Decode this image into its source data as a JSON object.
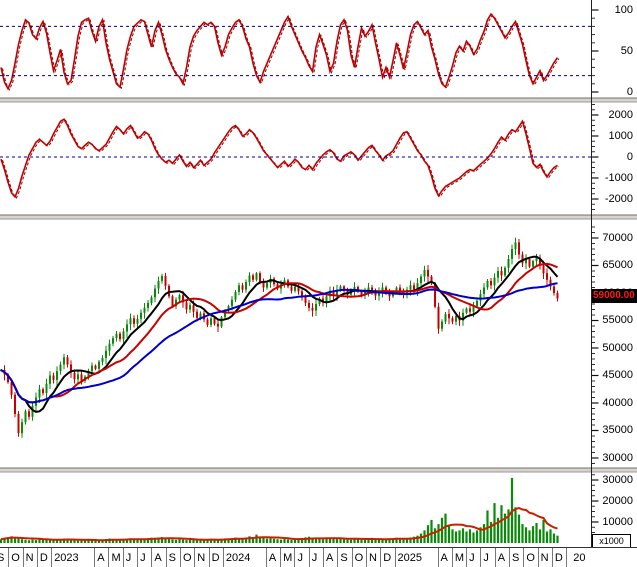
{
  "app": {
    "name": "Technical analysis chart",
    "panels": 4
  },
  "axis": {
    "price_badge": "59000.00",
    "volume_unit": "x1000"
  },
  "timeline": {
    "labels": [
      "S",
      "O",
      "N",
      "D",
      "2023",
      "A",
      "M",
      "J",
      "J",
      "A",
      "S",
      "O",
      "N",
      "D",
      "2024",
      "A",
      "M",
      "J",
      "J",
      "A",
      "S",
      "O",
      "N",
      "D",
      "2025",
      "A",
      "M",
      "J",
      "J",
      "A",
      "S",
      "O",
      "N",
      "D",
      "20"
    ]
  },
  "colors": {
    "oscillator": "#c00000",
    "oscillator_signal": "#8c0000",
    "dashed_level": "#000090",
    "candle_up": "#0a8a0a",
    "candle_down": "#c80000",
    "ma_fast": "#000000",
    "ma_mid": "#c80000",
    "ma_slow": "#0000c8",
    "volume_bar": "#0a8a0a",
    "volume_ma": "#c82000",
    "badge_bg": "#000000",
    "badge_text": "#ff1a1a"
  },
  "chart_data": [
    {
      "type": "line",
      "name": "stochastic_oscillator",
      "ylim": [
        0,
        100
      ],
      "yticks": [
        100,
        50,
        0
      ],
      "dashed_levels": [
        80,
        20
      ],
      "legend_position": "none",
      "grid": false,
      "values": [
        30,
        12,
        4,
        14,
        35,
        58,
        75,
        88,
        84,
        70,
        65,
        78,
        86,
        72,
        48,
        26,
        38,
        52,
        24,
        10,
        14,
        40,
        68,
        85,
        88,
        90,
        74,
        62,
        80,
        88,
        60,
        40,
        25,
        10,
        6,
        28,
        52,
        68,
        80,
        84,
        88,
        86,
        70,
        55,
        75,
        85,
        70,
        52,
        40,
        30,
        22,
        18,
        10,
        30,
        55,
        68,
        75,
        80,
        85,
        82,
        85,
        80,
        60,
        45,
        55,
        70,
        78,
        85,
        88,
        80,
        65,
        55,
        35,
        20,
        12,
        25,
        35,
        45,
        55,
        65,
        75,
        85,
        92,
        80,
        70,
        60,
        50,
        42,
        32,
        25,
        55,
        70,
        58,
        45,
        25,
        35,
        62,
        82,
        88,
        75,
        45,
        30,
        55,
        78,
        68,
        74,
        82,
        60,
        40,
        18,
        30,
        18,
        38,
        60,
        45,
        28,
        48,
        70,
        82,
        86,
        78,
        70,
        75,
        55,
        40,
        22,
        10,
        6,
        18,
        32,
        48,
        56,
        50,
        62,
        56,
        46,
        52,
        64,
        74,
        88,
        95,
        90,
        82,
        74,
        66,
        72,
        80,
        86,
        72,
        58,
        38,
        20,
        10,
        18,
        26,
        14,
        20,
        28,
        36,
        42
      ]
    },
    {
      "type": "line",
      "name": "momentum_oscillator",
      "ylim": [
        -2500,
        2500
      ],
      "yticks": [
        2000,
        1000,
        0,
        -1000,
        -2000
      ],
      "dashed_levels": [
        0
      ],
      "grid": false,
      "values": [
        -100,
        -600,
        -1200,
        -1700,
        -1900,
        -1500,
        -900,
        -400,
        100,
        400,
        700,
        850,
        700,
        550,
        750,
        1100,
        1400,
        1700,
        1800,
        1500,
        1100,
        800,
        500,
        400,
        550,
        700,
        600,
        400,
        300,
        450,
        600,
        900,
        1200,
        1450,
        1300,
        1100,
        1350,
        1500,
        1200,
        900,
        1000,
        1200,
        1100,
        800,
        400,
        100,
        -100,
        -250,
        -150,
        -300,
        -100,
        100,
        -200,
        -450,
        -250,
        -500,
        -350,
        -150,
        -400,
        -250,
        -100,
        200,
        450,
        700,
        950,
        1200,
        1400,
        1500,
        1300,
        1000,
        1100,
        1300,
        1150,
        900,
        600,
        300,
        100,
        -100,
        -300,
        -500,
        -350,
        -200,
        -450,
        -300,
        -100,
        -250,
        -500,
        -600,
        -400,
        -600,
        -300,
        -100,
        100,
        250,
        350,
        200,
        -100,
        -200,
        50,
        150,
        250,
        100,
        -150,
        50,
        250,
        450,
        550,
        300,
        100,
        -150,
        50,
        150,
        300,
        600,
        900,
        1150,
        1200,
        900,
        600,
        300,
        100,
        -200,
        -400,
        -900,
        -1500,
        -1850,
        -1600,
        -1400,
        -1300,
        -1200,
        -1100,
        -1000,
        -850,
        -700,
        -600,
        -650,
        -500,
        -350,
        -200,
        -50,
        150,
        400,
        700,
        950,
        800,
        1100,
        1300,
        1200,
        1450,
        1700,
        1100,
        400,
        -300,
        -500,
        -350,
        -700,
        -950,
        -700,
        -500,
        -400
      ]
    },
    {
      "type": "candlestick",
      "name": "weekly_price",
      "ylim": [
        28800,
        72700
      ],
      "yticks": [
        70000,
        65000,
        60000,
        55000,
        50000,
        45000,
        40000,
        35000,
        30000
      ],
      "last_close": 59000,
      "last_close_label": "59000.00",
      "moving_averages": [
        {
          "name": "ma_fast",
          "period": 8,
          "color": "#000000"
        },
        {
          "name": "ma_mid",
          "period": 16,
          "color": "#c80000"
        },
        {
          "name": "ma_slow",
          "period": 32,
          "color": "#0000c8"
        }
      ],
      "closes": [
        46000,
        45200,
        43800,
        41500,
        38000,
        34500,
        36500,
        38500,
        37500,
        39500,
        41000,
        42500,
        41800,
        43500,
        45000,
        44200,
        45800,
        47000,
        48300,
        47000,
        45500,
        44300,
        45200,
        44000,
        44800,
        45800,
        46800,
        46200,
        47500,
        48200,
        49500,
        50800,
        51800,
        52600,
        51600,
        53000,
        54300,
        55400,
        54400,
        55300,
        56400,
        57300,
        58200,
        59200,
        60800,
        62200,
        63100,
        61300,
        59400,
        57600,
        58800,
        59600,
        58300,
        57000,
        57800,
        56600,
        55500,
        56300,
        55200,
        54200,
        55400,
        54400,
        53900,
        55600,
        56800,
        57600,
        58800,
        60200,
        61400,
        60600,
        62000,
        63200,
        62400,
        63600,
        62000,
        61000,
        61800,
        62600,
        61600,
        60800,
        61600,
        62300,
        61200,
        60400,
        61200,
        60300,
        59300,
        58200,
        57300,
        56800,
        58000,
        59000,
        58300,
        59400,
        60400,
        59600,
        60600,
        61200,
        60400,
        59700,
        60500,
        61100,
        60300,
        59600,
        60400,
        61000,
        60200,
        59500,
        60300,
        61000,
        60100,
        59400,
        60200,
        61000,
        60300,
        59700,
        60600,
        61400,
        60600,
        61800,
        63000,
        64200,
        63000,
        61800,
        57500,
        53500,
        54800,
        56200,
        55400,
        54800,
        55800,
        55000,
        56400,
        57200,
        56600,
        57600,
        58600,
        59800,
        61000,
        62200,
        61400,
        62800,
        64000,
        63200,
        64600,
        66200,
        68000,
        69200,
        67000,
        65400,
        66200,
        64800,
        65800,
        66400,
        65000,
        63600,
        62400,
        61200,
        60000,
        59000
      ]
    },
    {
      "type": "bar",
      "name": "volume",
      "unit": "x1000",
      "ylim": [
        0,
        33500
      ],
      "yticks": [
        30000,
        20000,
        10000
      ],
      "ma_period": 10,
      "values": [
        1800,
        2400,
        2800,
        3200,
        2600,
        2200,
        1800,
        1500,
        1300,
        1600,
        1400,
        1700,
        1500,
        1900,
        1600,
        1300,
        1500,
        1800,
        2100,
        1700,
        1500,
        1300,
        1100,
        1400,
        1200,
        1500,
        1300,
        1100,
        1400,
        1700,
        1900,
        2100,
        1800,
        1600,
        1400,
        1700,
        2000,
        2200,
        1800,
        1600,
        1900,
        2100,
        2300,
        2500,
        2200,
        2600,
        2800,
        2300,
        2000,
        1700,
        1500,
        1800,
        1600,
        1400,
        1700,
        1500,
        1300,
        1600,
        1400,
        1800,
        2000,
        1700,
        1500,
        1900,
        2200,
        2000,
        2300,
        2600,
        2400,
        2100,
        2500,
        3200,
        2800,
        4000,
        3000,
        2400,
        2100,
        2300,
        2000,
        1800,
        1600,
        1900,
        1700,
        1500,
        1800,
        2100,
        2400,
        2700,
        3000,
        2600,
        2200,
        1900,
        1700,
        2000,
        2300,
        2000,
        2200,
        2500,
        2100,
        1800,
        1600,
        1900,
        1700,
        1500,
        1800,
        2100,
        2300,
        2000,
        1700,
        1500,
        1800,
        2000,
        2200,
        2500,
        2200,
        2000,
        2300,
        2600,
        3000,
        3500,
        4500,
        6000,
        8500,
        11000,
        7000,
        9000,
        12000,
        14000,
        8000,
        6500,
        5500,
        6000,
        7000,
        5500,
        6500,
        5000,
        6000,
        7500,
        9000,
        15500,
        10000,
        19000,
        12000,
        18000,
        14000,
        16000,
        31000,
        17000,
        13500,
        9000,
        7500,
        6000,
        8000,
        9500,
        6500,
        11000,
        5500,
        6500,
        4500,
        3500
      ]
    }
  ]
}
